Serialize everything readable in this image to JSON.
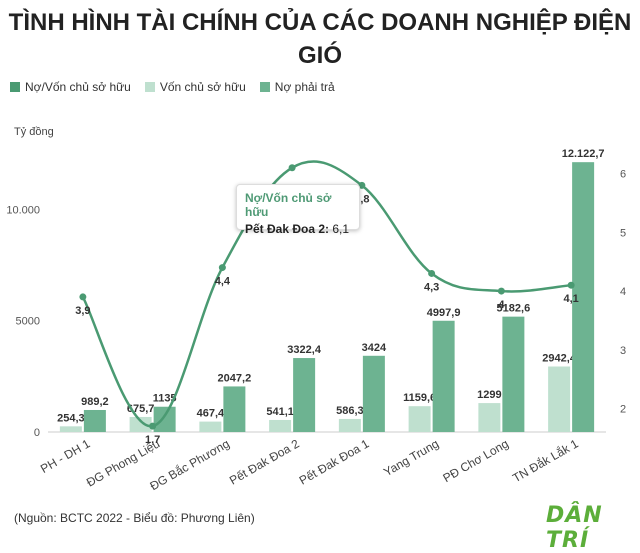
{
  "title": "TÌNH HÌNH TÀI CHÍNH CỦA CÁC DOANH NGHIỆP ĐIỆN GIÓ",
  "unit_label": "Tỷ đồng",
  "source": "(Nguồn: BCTC 2022 - Biểu đồ: Phương Liên)",
  "logo": "DÂN TRÍ",
  "tooltip": {
    "title": "Nợ/Vốn chủ sở hữu",
    "label": "Pết Đak Đoa 2:",
    "value": "6,1"
  },
  "colors": {
    "ratio": "#4a9a72",
    "equity": "#bfe0cf",
    "debt": "#6db391"
  },
  "chart_data": {
    "type": "bar",
    "categories": [
      "PH - DH 1",
      "ĐG Phong Liệu",
      "ĐG Bắc Phương",
      "Pết Đak Đoa 2",
      "Pết Đak Đoa 1",
      "Yang Trung",
      "PĐ Chơ Long",
      "TN Đắk Lắk 1"
    ],
    "series": [
      {
        "name": "Nợ/Vốn chủ sở hữu",
        "type": "line",
        "axis": "right",
        "values": [
          3.9,
          1.7,
          4.4,
          6.1,
          5.8,
          4.3,
          4.0,
          4.1
        ],
        "labels": [
          "3,9",
          "1,7",
          "4,4",
          "",
          "5,8",
          "4,3",
          "4",
          "4,1"
        ]
      },
      {
        "name": "Vốn chủ sở hữu",
        "type": "bar",
        "axis": "left",
        "values": [
          254.3,
          675.7,
          467.4,
          541.1,
          586.3,
          1159.6,
          1299,
          2942.4
        ],
        "labels": [
          "254,3",
          "675,7",
          "467,4",
          "541,1",
          "586,3",
          "1159,6",
          "1299",
          "2942,4"
        ]
      },
      {
        "name": "Nợ phải trả",
        "type": "bar",
        "axis": "left",
        "values": [
          989.2,
          1135,
          2047.2,
          3322.4,
          3424,
          4997.9,
          5182.6,
          12122.7
        ],
        "labels": [
          "989,2",
          "1135",
          "2047,2",
          "3322,4",
          "3424",
          "4997,9",
          "5182,6",
          "12.122,7"
        ]
      }
    ],
    "y_left": {
      "ticks": [
        0,
        5000,
        10000
      ],
      "tick_labels": [
        "0",
        "5000",
        "10.000"
      ],
      "range": [
        0,
        12400
      ]
    },
    "y_right": {
      "ticks": [
        2,
        3,
        4,
        5,
        6
      ],
      "tick_labels": [
        "2",
        "3",
        "4",
        "5",
        "6"
      ],
      "range": [
        1.6,
        6.3
      ]
    },
    "legend_position": "top-left",
    "grid": false
  }
}
